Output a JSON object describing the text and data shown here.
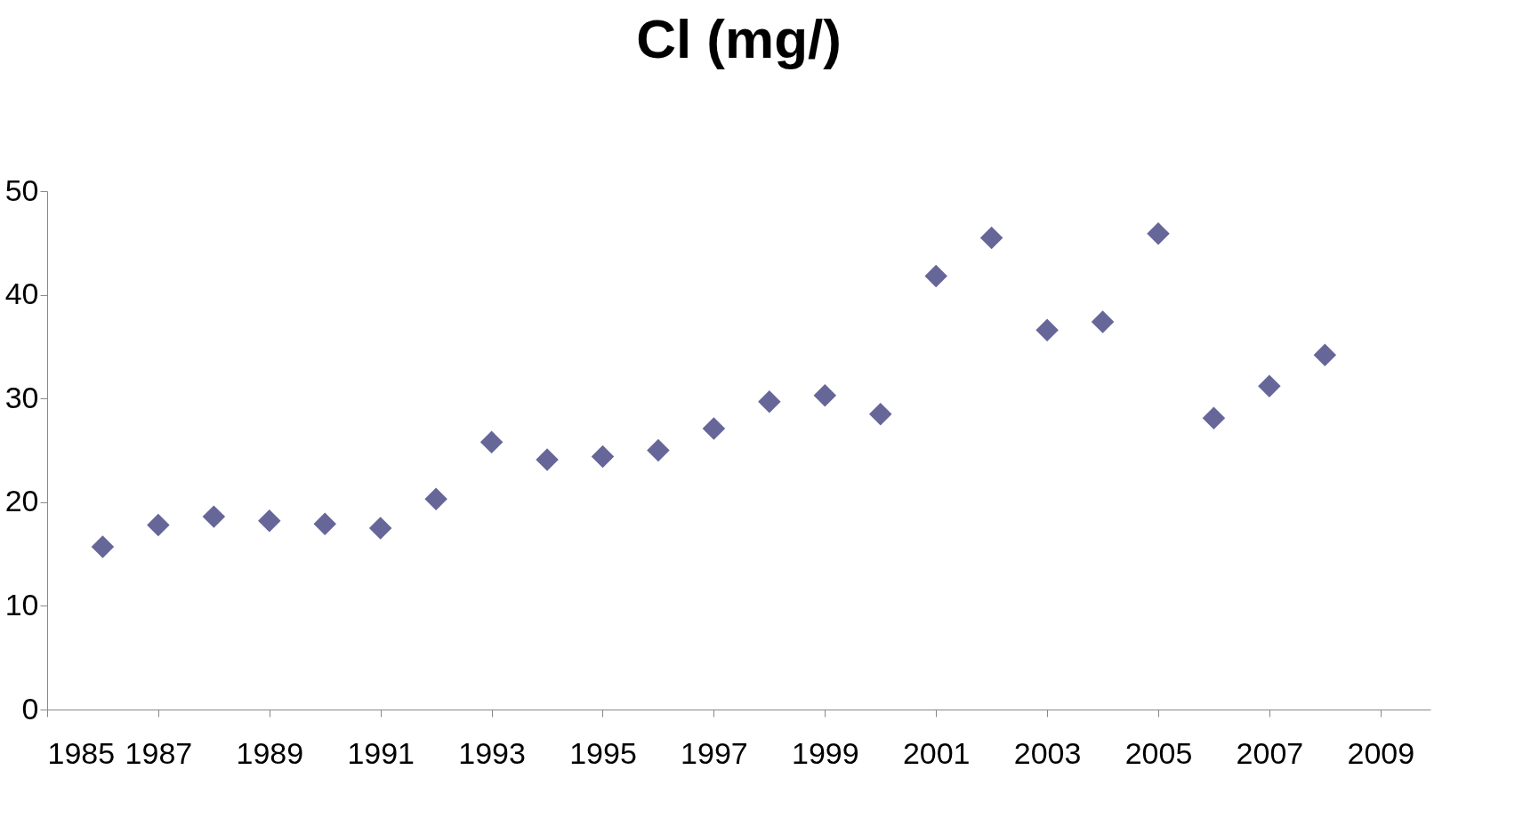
{
  "chart_data": {
    "type": "scatter",
    "title": "Cl (mg/)",
    "x": [
      1986,
      1987,
      1988,
      1989,
      1990,
      1991,
      1992,
      1993,
      1994,
      1995,
      1996,
      1997,
      1998,
      1999,
      2000,
      2001,
      2002,
      2003,
      2004,
      2005,
      2006,
      2007,
      2008
    ],
    "series": [
      {
        "color": "#666699",
        "values": [
          15.7,
          17.8,
          18.6,
          18.2,
          17.9,
          17.5,
          20.3,
          25.8,
          24.1,
          24.4,
          25.0,
          27.1,
          29.7,
          30.3,
          28.5,
          41.8,
          45.5,
          36.6,
          37.4,
          45.9,
          28.1,
          31.2,
          34.2
        ]
      }
    ],
    "marker": "diamond",
    "xlim": [
      1985,
      2009.9
    ],
    "xticks": [
      1985,
      1987,
      1989,
      1991,
      1993,
      1995,
      1997,
      1999,
      2001,
      2003,
      2005,
      2007,
      2009
    ],
    "ylim": [
      0,
      50
    ],
    "yticks": [
      0,
      10,
      20,
      30,
      40,
      50
    ],
    "grid": false,
    "legend": false
  }
}
